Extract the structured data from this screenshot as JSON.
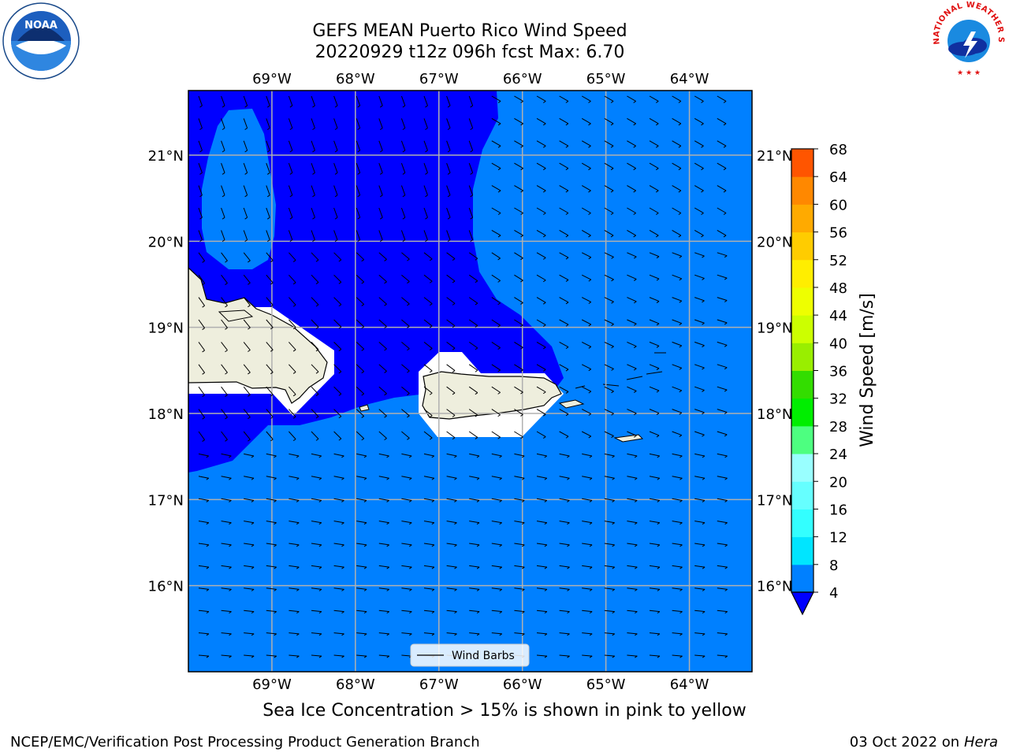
{
  "title": {
    "line1": "GEFS MEAN Puerto Rico Wind Speed",
    "line2": "20220929 t12z 096h fcst   Max: 6.70"
  },
  "map": {
    "lon_range": [
      -70,
      -63.25
    ],
    "lat_range": [
      15,
      21.75
    ],
    "lon_ticks": [
      {
        "value": -69,
        "label": "69°W"
      },
      {
        "value": -68,
        "label": "68°W"
      },
      {
        "value": -67,
        "label": "67°W"
      },
      {
        "value": -66,
        "label": "66°W"
      },
      {
        "value": -65,
        "label": "65°W"
      },
      {
        "value": -64,
        "label": "64°W"
      }
    ],
    "lat_ticks": [
      {
        "value": 21,
        "label": "21°N"
      },
      {
        "value": 20,
        "label": "20°N"
      },
      {
        "value": 19,
        "label": "19°N"
      },
      {
        "value": 18,
        "label": "18°N"
      },
      {
        "value": 17,
        "label": "17°N"
      },
      {
        "value": 16,
        "label": "16°N"
      }
    ],
    "legend_label": "Wind Barbs",
    "colors": {
      "ocean_low": "#0000ff",
      "ocean_high": "#0080ff",
      "land": "#eeeedd",
      "grid": "#b0b0b0",
      "mask": "#ffffff"
    }
  },
  "colorbar": {
    "label": "Wind Speed [m/s]",
    "levels": [
      4,
      8,
      12,
      16,
      20,
      24,
      28,
      32,
      36,
      40,
      44,
      48,
      52,
      56,
      60,
      64,
      68
    ],
    "colors": [
      "#0080ff",
      "#00e5ff",
      "#33ffff",
      "#66ffff",
      "#99ffff",
      "#4dff80",
      "#00ee00",
      "#33dd00",
      "#99ee00",
      "#ccff00",
      "#eeff00",
      "#ffee00",
      "#ffcc00",
      "#ffaa00",
      "#ff8800",
      "#ff5500",
      "#ff2200",
      "#ff0000"
    ],
    "under_color": "#0000ff",
    "tick_labels": [
      "68",
      "64",
      "60",
      "56",
      "52",
      "48",
      "44",
      "40",
      "36",
      "32",
      "28",
      "24",
      "20",
      "16",
      "12",
      "8",
      "4"
    ]
  },
  "footer": {
    "note": "Sea Ice Concentration > 15% is shown in pink to yellow",
    "credit_left": "NCEP/EMC/Verification Post Processing Product Generation Branch",
    "date": "03 Oct 2022 on ",
    "machine": "Hera"
  },
  "logos": {
    "noaa_text": "NOAA",
    "nws_text": "NATIONAL WEATHER SERVICE"
  }
}
